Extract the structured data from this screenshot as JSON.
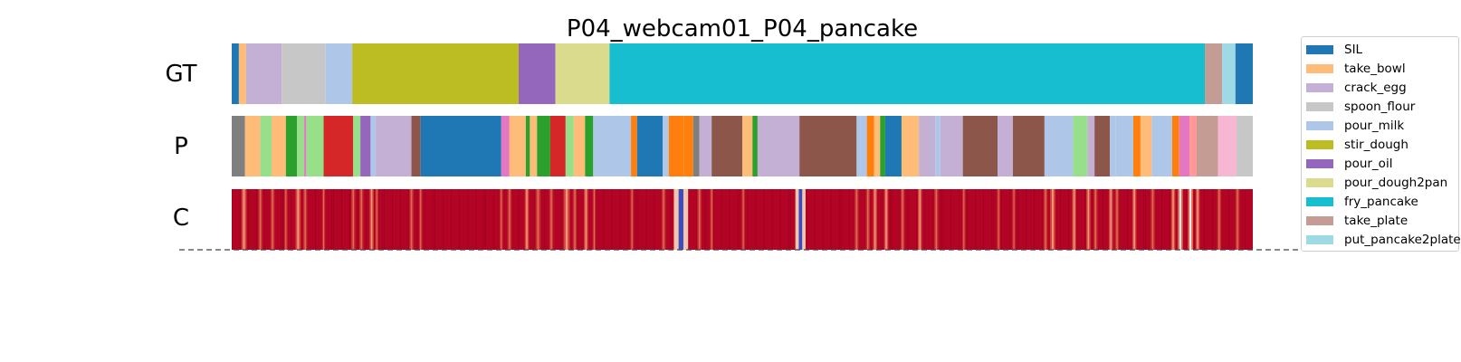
{
  "chart_data": {
    "type": "segmentation-timeline",
    "title": "P04_webcam01_P04_pancake",
    "row_labels": [
      "GT",
      "P",
      "C"
    ],
    "x_range": [
      0,
      1
    ],
    "legend": {
      "placement": "right",
      "entries": [
        {
          "label": "SIL",
          "color": "#1f77b4"
        },
        {
          "label": "take_bowl",
          "color": "#ffbb78"
        },
        {
          "label": "crack_egg",
          "color": "#c5b0d5"
        },
        {
          "label": "spoon_flour",
          "color": "#c7c7c7"
        },
        {
          "label": "pour_milk",
          "color": "#aec7e8"
        },
        {
          "label": "stir_dough",
          "color": "#bcbd22"
        },
        {
          "label": "pour_oil",
          "color": "#9467bd"
        },
        {
          "label": "pour_dough2pan",
          "color": "#dbdb8d"
        },
        {
          "label": "fry_pancake",
          "color": "#17becf"
        },
        {
          "label": "take_plate",
          "color": "#c49c94"
        },
        {
          "label": "put_pancake2plate",
          "color": "#9edae5"
        }
      ]
    },
    "gt_segments": [
      {
        "start": 0.0,
        "end": 0.007,
        "color": "#1f77b4",
        "label": "SIL"
      },
      {
        "start": 0.007,
        "end": 0.014,
        "color": "#ffbb78",
        "label": "take_bowl"
      },
      {
        "start": 0.014,
        "end": 0.049,
        "color": "#c5b0d5",
        "label": "crack_egg"
      },
      {
        "start": 0.049,
        "end": 0.092,
        "color": "#c7c7c7",
        "label": "spoon_flour"
      },
      {
        "start": 0.092,
        "end": 0.118,
        "color": "#aec7e8",
        "label": "pour_milk"
      },
      {
        "start": 0.118,
        "end": 0.281,
        "color": "#bcbd22",
        "label": "stir_dough"
      },
      {
        "start": 0.281,
        "end": 0.317,
        "color": "#9467bd",
        "label": "pour_oil"
      },
      {
        "start": 0.317,
        "end": 0.37,
        "color": "#dbdb8d",
        "label": "pour_dough2pan"
      },
      {
        "start": 0.37,
        "end": 0.953,
        "color": "#17becf",
        "label": "fry_pancake"
      },
      {
        "start": 0.953,
        "end": 0.97,
        "color": "#c49c94",
        "label": "take_plate"
      },
      {
        "start": 0.97,
        "end": 0.983,
        "color": "#9edae5",
        "label": "put_pancake2plate"
      },
      {
        "start": 0.983,
        "end": 1.0,
        "color": "#1f77b4",
        "label": "SIL"
      }
    ],
    "pred_segments": [
      {
        "start": 0.0,
        "end": 0.013,
        "color": "#7f7f7f"
      },
      {
        "start": 0.013,
        "end": 0.028,
        "color": "#ffbb78"
      },
      {
        "start": 0.028,
        "end": 0.039,
        "color": "#98df8a"
      },
      {
        "start": 0.039,
        "end": 0.053,
        "color": "#ffbb78"
      },
      {
        "start": 0.053,
        "end": 0.064,
        "color": "#2ca02c"
      },
      {
        "start": 0.064,
        "end": 0.071,
        "color": "#98df8a"
      },
      {
        "start": 0.071,
        "end": 0.073,
        "color": "#e377c2"
      },
      {
        "start": 0.073,
        "end": 0.09,
        "color": "#98df8a"
      },
      {
        "start": 0.09,
        "end": 0.119,
        "color": "#d62728"
      },
      {
        "start": 0.119,
        "end": 0.126,
        "color": "#98df8a"
      },
      {
        "start": 0.126,
        "end": 0.136,
        "color": "#9467bd"
      },
      {
        "start": 0.136,
        "end": 0.141,
        "color": "#aec7e8"
      },
      {
        "start": 0.141,
        "end": 0.176,
        "color": "#c5b0d5"
      },
      {
        "start": 0.176,
        "end": 0.185,
        "color": "#8c564b"
      },
      {
        "start": 0.185,
        "end": 0.264,
        "color": "#1f77b4"
      },
      {
        "start": 0.264,
        "end": 0.272,
        "color": "#e377c2"
      },
      {
        "start": 0.272,
        "end": 0.288,
        "color": "#ffbb78"
      },
      {
        "start": 0.288,
        "end": 0.292,
        "color": "#2ca02c"
      },
      {
        "start": 0.292,
        "end": 0.299,
        "color": "#ffbb78"
      },
      {
        "start": 0.299,
        "end": 0.312,
        "color": "#2ca02c"
      },
      {
        "start": 0.312,
        "end": 0.327,
        "color": "#d62728"
      },
      {
        "start": 0.327,
        "end": 0.335,
        "color": "#98df8a"
      },
      {
        "start": 0.335,
        "end": 0.346,
        "color": "#ffbb78"
      },
      {
        "start": 0.346,
        "end": 0.354,
        "color": "#2ca02c"
      },
      {
        "start": 0.354,
        "end": 0.391,
        "color": "#aec7e8"
      },
      {
        "start": 0.391,
        "end": 0.397,
        "color": "#ff7f0e"
      },
      {
        "start": 0.397,
        "end": 0.422,
        "color": "#1f77b4"
      },
      {
        "start": 0.422,
        "end": 0.428,
        "color": "#aec7e8"
      },
      {
        "start": 0.428,
        "end": 0.443,
        "color": "#ff7f0e"
      },
      {
        "start": 0.443,
        "end": 0.452,
        "color": "#ff7f0e"
      },
      {
        "start": 0.452,
        "end": 0.458,
        "color": "#7f7f7f"
      },
      {
        "start": 0.458,
        "end": 0.47,
        "color": "#c5b0d5"
      },
      {
        "start": 0.47,
        "end": 0.5,
        "color": "#8c564b"
      },
      {
        "start": 0.5,
        "end": 0.51,
        "color": "#ffbb78"
      },
      {
        "start": 0.51,
        "end": 0.515,
        "color": "#2ca02c"
      },
      {
        "start": 0.515,
        "end": 0.556,
        "color": "#c5b0d5"
      },
      {
        "start": 0.556,
        "end": 0.612,
        "color": "#8c564b"
      },
      {
        "start": 0.612,
        "end": 0.622,
        "color": "#aec7e8"
      },
      {
        "start": 0.622,
        "end": 0.629,
        "color": "#ff7f0e"
      },
      {
        "start": 0.629,
        "end": 0.635,
        "color": "#ffbb78"
      },
      {
        "start": 0.635,
        "end": 0.64,
        "color": "#2ca02c"
      },
      {
        "start": 0.64,
        "end": 0.656,
        "color": "#1f77b4"
      },
      {
        "start": 0.656,
        "end": 0.673,
        "color": "#ffbb78"
      },
      {
        "start": 0.673,
        "end": 0.689,
        "color": "#c5b0d5"
      },
      {
        "start": 0.689,
        "end": 0.694,
        "color": "#aec7e8"
      },
      {
        "start": 0.694,
        "end": 0.716,
        "color": "#c5b0d5"
      },
      {
        "start": 0.716,
        "end": 0.75,
        "color": "#8c564b"
      },
      {
        "start": 0.75,
        "end": 0.765,
        "color": "#c5b0d5"
      },
      {
        "start": 0.765,
        "end": 0.796,
        "color": "#8c564b"
      },
      {
        "start": 0.796,
        "end": 0.824,
        "color": "#aec7e8"
      },
      {
        "start": 0.824,
        "end": 0.838,
        "color": "#98df8a"
      },
      {
        "start": 0.838,
        "end": 0.845,
        "color": "#c5b0d5"
      },
      {
        "start": 0.845,
        "end": 0.86,
        "color": "#8c564b"
      },
      {
        "start": 0.86,
        "end": 0.866,
        "color": "#aec7e8"
      },
      {
        "start": 0.866,
        "end": 0.883,
        "color": "#aec7e8"
      },
      {
        "start": 0.883,
        "end": 0.89,
        "color": "#ff7f0e"
      },
      {
        "start": 0.89,
        "end": 0.901,
        "color": "#ffbb78"
      },
      {
        "start": 0.901,
        "end": 0.921,
        "color": "#aec7e8"
      },
      {
        "start": 0.921,
        "end": 0.928,
        "color": "#ff7f0e"
      },
      {
        "start": 0.928,
        "end": 0.938,
        "color": "#e377c2"
      },
      {
        "start": 0.938,
        "end": 0.945,
        "color": "#ff9896"
      },
      {
        "start": 0.945,
        "end": 0.966,
        "color": "#c49c94"
      },
      {
        "start": 0.966,
        "end": 0.984,
        "color": "#f7b6d2"
      },
      {
        "start": 0.984,
        "end": 1.0,
        "color": "#c7c7c7"
      }
    ],
    "confidence_dips": [
      {
        "pos": 0.012,
        "w": 0.005,
        "level": 0.7
      },
      {
        "pos": 0.028,
        "w": 0.004,
        "level": 0.4
      },
      {
        "pos": 0.04,
        "w": 0.004,
        "level": 0.5
      },
      {
        "pos": 0.053,
        "w": 0.003,
        "level": 0.4
      },
      {
        "pos": 0.065,
        "w": 0.005,
        "level": 0.6
      },
      {
        "pos": 0.072,
        "w": 0.004,
        "level": 0.5
      },
      {
        "pos": 0.09,
        "w": 0.003,
        "level": 0.3
      },
      {
        "pos": 0.119,
        "w": 0.004,
        "level": 0.5
      },
      {
        "pos": 0.127,
        "w": 0.004,
        "level": 0.5
      },
      {
        "pos": 0.137,
        "w": 0.004,
        "level": 0.6
      },
      {
        "pos": 0.142,
        "w": 0.003,
        "level": 0.4
      },
      {
        "pos": 0.176,
        "w": 0.004,
        "level": 0.4
      },
      {
        "pos": 0.185,
        "w": 0.003,
        "level": 0.3
      },
      {
        "pos": 0.264,
        "w": 0.003,
        "level": 0.4
      },
      {
        "pos": 0.272,
        "w": 0.004,
        "level": 0.5
      },
      {
        "pos": 0.289,
        "w": 0.004,
        "level": 0.6
      },
      {
        "pos": 0.3,
        "w": 0.005,
        "level": 0.5
      },
      {
        "pos": 0.313,
        "w": 0.004,
        "level": 0.5
      },
      {
        "pos": 0.328,
        "w": 0.006,
        "level": 0.7
      },
      {
        "pos": 0.336,
        "w": 0.004,
        "level": 0.5
      },
      {
        "pos": 0.347,
        "w": 0.004,
        "level": 0.6
      },
      {
        "pos": 0.355,
        "w": 0.003,
        "level": 0.3
      },
      {
        "pos": 0.392,
        "w": 0.003,
        "level": 0.3
      },
      {
        "pos": 0.423,
        "w": 0.004,
        "level": 0.5
      },
      {
        "pos": 0.44,
        "w": 0.014,
        "level": 0.95
      },
      {
        "pos": 0.458,
        "w": 0.004,
        "level": 0.4
      },
      {
        "pos": 0.47,
        "w": 0.003,
        "level": 0.3
      },
      {
        "pos": 0.501,
        "w": 0.003,
        "level": 0.4
      },
      {
        "pos": 0.557,
        "w": 0.01,
        "level": 1.0
      },
      {
        "pos": 0.612,
        "w": 0.004,
        "level": 0.5
      },
      {
        "pos": 0.623,
        "w": 0.004,
        "level": 0.5
      },
      {
        "pos": 0.63,
        "w": 0.004,
        "level": 0.6
      },
      {
        "pos": 0.641,
        "w": 0.004,
        "level": 0.6
      },
      {
        "pos": 0.657,
        "w": 0.004,
        "level": 0.5
      },
      {
        "pos": 0.674,
        "w": 0.004,
        "level": 0.6
      },
      {
        "pos": 0.69,
        "w": 0.004,
        "level": 0.5
      },
      {
        "pos": 0.717,
        "w": 0.003,
        "level": 0.4
      },
      {
        "pos": 0.751,
        "w": 0.003,
        "level": 0.4
      },
      {
        "pos": 0.766,
        "w": 0.003,
        "level": 0.4
      },
      {
        "pos": 0.797,
        "w": 0.004,
        "level": 0.5
      },
      {
        "pos": 0.804,
        "w": 0.005,
        "level": 0.6
      },
      {
        "pos": 0.825,
        "w": 0.004,
        "level": 0.6
      },
      {
        "pos": 0.839,
        "w": 0.004,
        "level": 0.6
      },
      {
        "pos": 0.846,
        "w": 0.004,
        "level": 0.5
      },
      {
        "pos": 0.861,
        "w": 0.004,
        "level": 0.6
      },
      {
        "pos": 0.867,
        "w": 0.004,
        "level": 0.5
      },
      {
        "pos": 0.884,
        "w": 0.004,
        "level": 0.6
      },
      {
        "pos": 0.902,
        "w": 0.004,
        "level": 0.5
      },
      {
        "pos": 0.922,
        "w": 0.004,
        "level": 0.6
      },
      {
        "pos": 0.929,
        "w": 0.005,
        "level": 0.8
      },
      {
        "pos": 0.939,
        "w": 0.005,
        "level": 0.9
      },
      {
        "pos": 0.946,
        "w": 0.004,
        "level": 0.6
      },
      {
        "pos": 0.967,
        "w": 0.004,
        "level": 0.5
      },
      {
        "pos": 0.985,
        "w": 0.004,
        "level": 0.5
      }
    ]
  }
}
